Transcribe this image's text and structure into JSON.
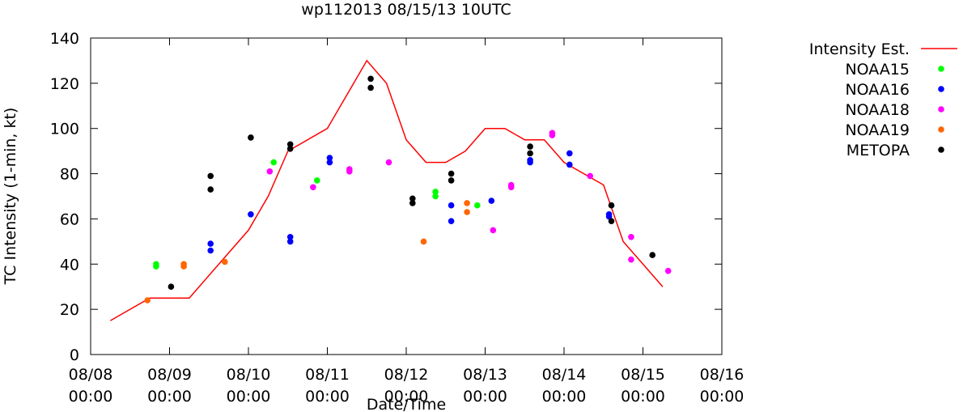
{
  "chart_data": {
    "type": "scatter",
    "title": "wp112013 08/15/13 10UTC",
    "xlabel": "Date/Time",
    "ylabel": "TC Intensity (1-min, kt)",
    "xlim": [
      0,
      8
    ],
    "ylim": [
      0,
      140
    ],
    "x_unit": "days since 08/08 00:00",
    "yticks": [
      0,
      20,
      40,
      60,
      80,
      100,
      120,
      140
    ],
    "xticks": [
      {
        "x": 0,
        "line1": "08/08",
        "line2": "00:00"
      },
      {
        "x": 1,
        "line1": "08/09",
        "line2": "00:00"
      },
      {
        "x": 2,
        "line1": "08/10",
        "line2": "00:00"
      },
      {
        "x": 3,
        "line1": "08/11",
        "line2": "00:00"
      },
      {
        "x": 4,
        "line1": "08/12",
        "line2": "00:00"
      },
      {
        "x": 5,
        "line1": "08/13",
        "line2": "00:00"
      },
      {
        "x": 6,
        "line1": "08/14",
        "line2": "00:00"
      },
      {
        "x": 7,
        "line1": "08/15",
        "line2": "00:00"
      },
      {
        "x": 8,
        "line1": "08/16",
        "line2": "00:00"
      }
    ],
    "legend_position": "right",
    "line_series": {
      "name": "Intensity Est.",
      "color": "#ff0000",
      "points": [
        [
          0.25,
          15
        ],
        [
          0.75,
          25
        ],
        [
          1.25,
          25
        ],
        [
          2.0,
          55
        ],
        [
          2.25,
          70
        ],
        [
          2.5,
          90
        ],
        [
          3.0,
          100
        ],
        [
          3.5,
          130
        ],
        [
          3.75,
          120
        ],
        [
          4.0,
          95
        ],
        [
          4.25,
          85
        ],
        [
          4.5,
          85
        ],
        [
          4.75,
          90
        ],
        [
          5.0,
          100
        ],
        [
          5.25,
          100
        ],
        [
          5.5,
          95
        ],
        [
          5.75,
          95
        ],
        [
          6.0,
          85
        ],
        [
          6.5,
          75
        ],
        [
          6.75,
          50
        ],
        [
          7.0,
          40
        ],
        [
          7.25,
          30
        ]
      ]
    },
    "series": [
      {
        "name": "NOAA15",
        "color": "#00ff00",
        "points": [
          [
            0.83,
            40
          ],
          [
            0.83,
            39
          ],
          [
            2.32,
            85
          ],
          [
            2.87,
            77
          ],
          [
            4.37,
            72
          ],
          [
            4.37,
            70
          ],
          [
            4.9,
            66
          ]
        ]
      },
      {
        "name": "NOAA16",
        "color": "#0000ff",
        "points": [
          [
            1.52,
            49
          ],
          [
            1.52,
            46
          ],
          [
            2.03,
            62
          ],
          [
            2.53,
            52
          ],
          [
            2.53,
            50
          ],
          [
            3.03,
            87
          ],
          [
            3.03,
            85
          ],
          [
            4.57,
            66
          ],
          [
            4.57,
            59
          ],
          [
            5.08,
            68
          ],
          [
            5.57,
            86
          ],
          [
            5.57,
            85
          ],
          [
            6.07,
            89
          ],
          [
            6.07,
            84
          ],
          [
            6.57,
            62
          ],
          [
            6.57,
            61
          ]
        ]
      },
      {
        "name": "NOAA18",
        "color": "#ff00ff",
        "points": [
          [
            2.27,
            81
          ],
          [
            2.82,
            74
          ],
          [
            3.28,
            82
          ],
          [
            3.28,
            81
          ],
          [
            3.78,
            85
          ],
          [
            5.1,
            55
          ],
          [
            5.33,
            75
          ],
          [
            5.33,
            74
          ],
          [
            5.85,
            98
          ],
          [
            5.85,
            97
          ],
          [
            6.33,
            79
          ],
          [
            6.85,
            52
          ],
          [
            6.85,
            42
          ],
          [
            7.32,
            37
          ]
        ]
      },
      {
        "name": "NOAA19",
        "color": "#ff6600",
        "points": [
          [
            0.72,
            24
          ],
          [
            1.18,
            40
          ],
          [
            1.18,
            39
          ],
          [
            1.7,
            41
          ],
          [
            4.22,
            50
          ],
          [
            4.77,
            67
          ],
          [
            4.77,
            63
          ]
        ]
      },
      {
        "name": "METOPA",
        "color": "#000000",
        "points": [
          [
            1.02,
            30
          ],
          [
            1.52,
            79
          ],
          [
            1.52,
            73
          ],
          [
            2.03,
            96
          ],
          [
            2.53,
            93
          ],
          [
            2.53,
            91
          ],
          [
            3.55,
            122
          ],
          [
            3.55,
            118
          ],
          [
            4.08,
            69
          ],
          [
            4.08,
            67
          ],
          [
            4.57,
            80
          ],
          [
            4.57,
            77
          ],
          [
            5.57,
            92
          ],
          [
            5.57,
            89
          ],
          [
            6.6,
            66
          ],
          [
            6.6,
            59
          ],
          [
            7.12,
            44
          ]
        ]
      }
    ]
  }
}
